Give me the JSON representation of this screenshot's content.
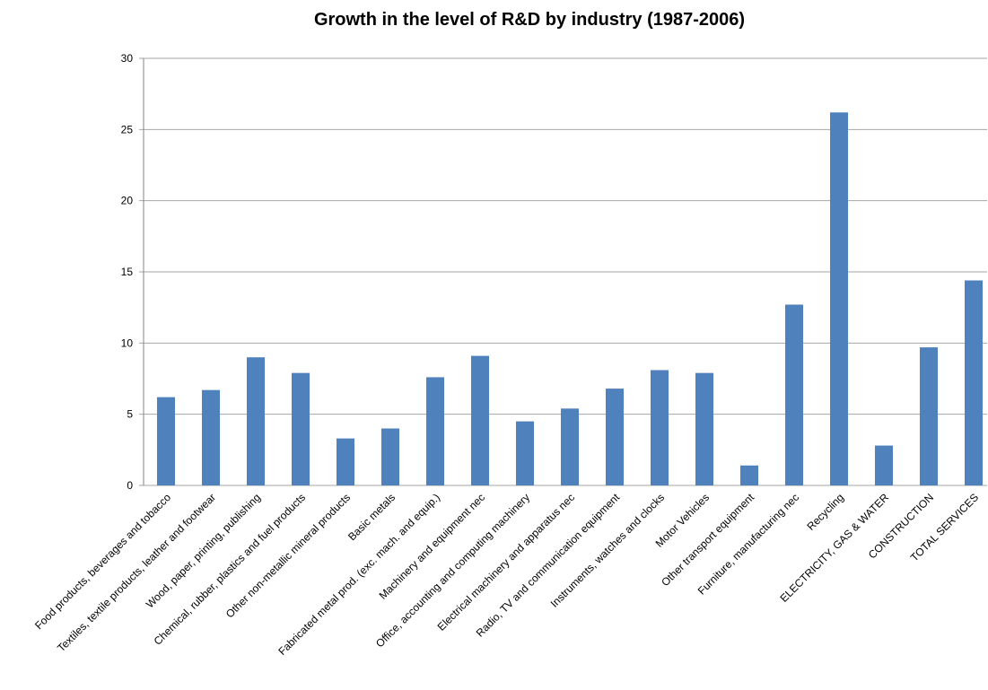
{
  "chart_data": {
    "type": "bar",
    "title": "Growth in the level of R&D by industry (1987-2006)",
    "categories": [
      "Food products, beverages and tobacco",
      "Textiles, textile products, leather and footwear",
      "Wood, paper, printing, publishing",
      "Chemical, rubber, plastics and fuel products",
      "Other  non-metallic mineral products",
      "Basic metals",
      "Fabricated metal prod. (exc. mach. and equip.)",
      "Machinery and equipment nec",
      "Office, accounting and computing machinery",
      "Electrical machinery and apparatus nec",
      "Radio, TV and communication equipment",
      "Instruments, watches and clocks",
      "Motor Vehicles",
      "Other transport equipment",
      "Furniture, manufacturing nec",
      "Recycling",
      "ELECTRICITY, GAS & WATER",
      "CONSTRUCTION",
      "TOTAL SERVICES"
    ],
    "values": [
      6.2,
      6.7,
      9.0,
      7.9,
      3.3,
      4.0,
      7.6,
      9.1,
      4.5,
      5.4,
      6.8,
      8.1,
      7.9,
      1.4,
      12.7,
      26.2,
      2.8,
      9.7,
      14.4
    ],
    "color": "#4f81bd",
    "ylim": [
      0,
      30
    ],
    "yticks": [
      0,
      5,
      10,
      15,
      20,
      25,
      30
    ],
    "grid": true
  }
}
